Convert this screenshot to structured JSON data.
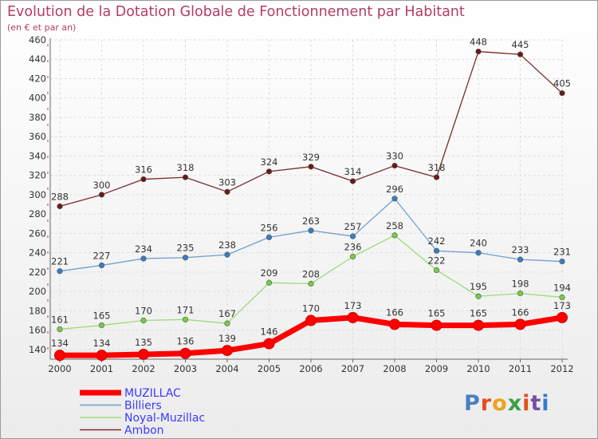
{
  "title": "Evolution de la Dotation Globale de Fonctionnement par Habitant",
  "subtitle": "(en € et par an)",
  "logo": {
    "text": "Proxiti",
    "letter_colors": [
      "#4a7fc1",
      "#e74c1c",
      "#f1a11e",
      "#3aa142",
      "#e74c1c",
      "#7b4fa0",
      "#2f7fd0"
    ]
  },
  "chart_data": {
    "type": "line",
    "x": [
      "2000",
      "2001",
      "2002",
      "2003",
      "2004",
      "2005",
      "2006",
      "2007",
      "2008",
      "2009",
      "2010",
      "2011",
      "2012"
    ],
    "ylim": [
      130,
      460
    ],
    "yticks": [
      140,
      160,
      180,
      200,
      220,
      240,
      260,
      280,
      300,
      320,
      340,
      360,
      380,
      400,
      420,
      440,
      460
    ],
    "grid": true,
    "legend_position": "bottom-left",
    "series": [
      {
        "name": "MUZILLAC",
        "color": "#ff0000",
        "marker_color": "#dd0000",
        "emphasis": "thick",
        "values": [
          134,
          134,
          135,
          136,
          139,
          146,
          170,
          173,
          166,
          165,
          165,
          166,
          173
        ]
      },
      {
        "name": "Billiers",
        "color": "#6fa0cf",
        "marker_color": "#3a7dc0",
        "emphasis": "normal",
        "values": [
          221,
          227,
          234,
          235,
          238,
          256,
          263,
          257,
          296,
          242,
          240,
          233,
          231
        ]
      },
      {
        "name": "Noyal-Muzillac",
        "color": "#99dd77",
        "marker_color": "#77cc44",
        "emphasis": "normal",
        "values": [
          161,
          165,
          170,
          171,
          167,
          209,
          208,
          236,
          258,
          222,
          195,
          198,
          194
        ]
      },
      {
        "name": "Ambon",
        "color": "#7a2a2a",
        "marker_color": "#6a1a1a",
        "emphasis": "normal",
        "values": [
          288,
          300,
          316,
          318,
          303,
          324,
          329,
          314,
          330,
          318,
          448,
          445,
          405
        ]
      }
    ]
  }
}
